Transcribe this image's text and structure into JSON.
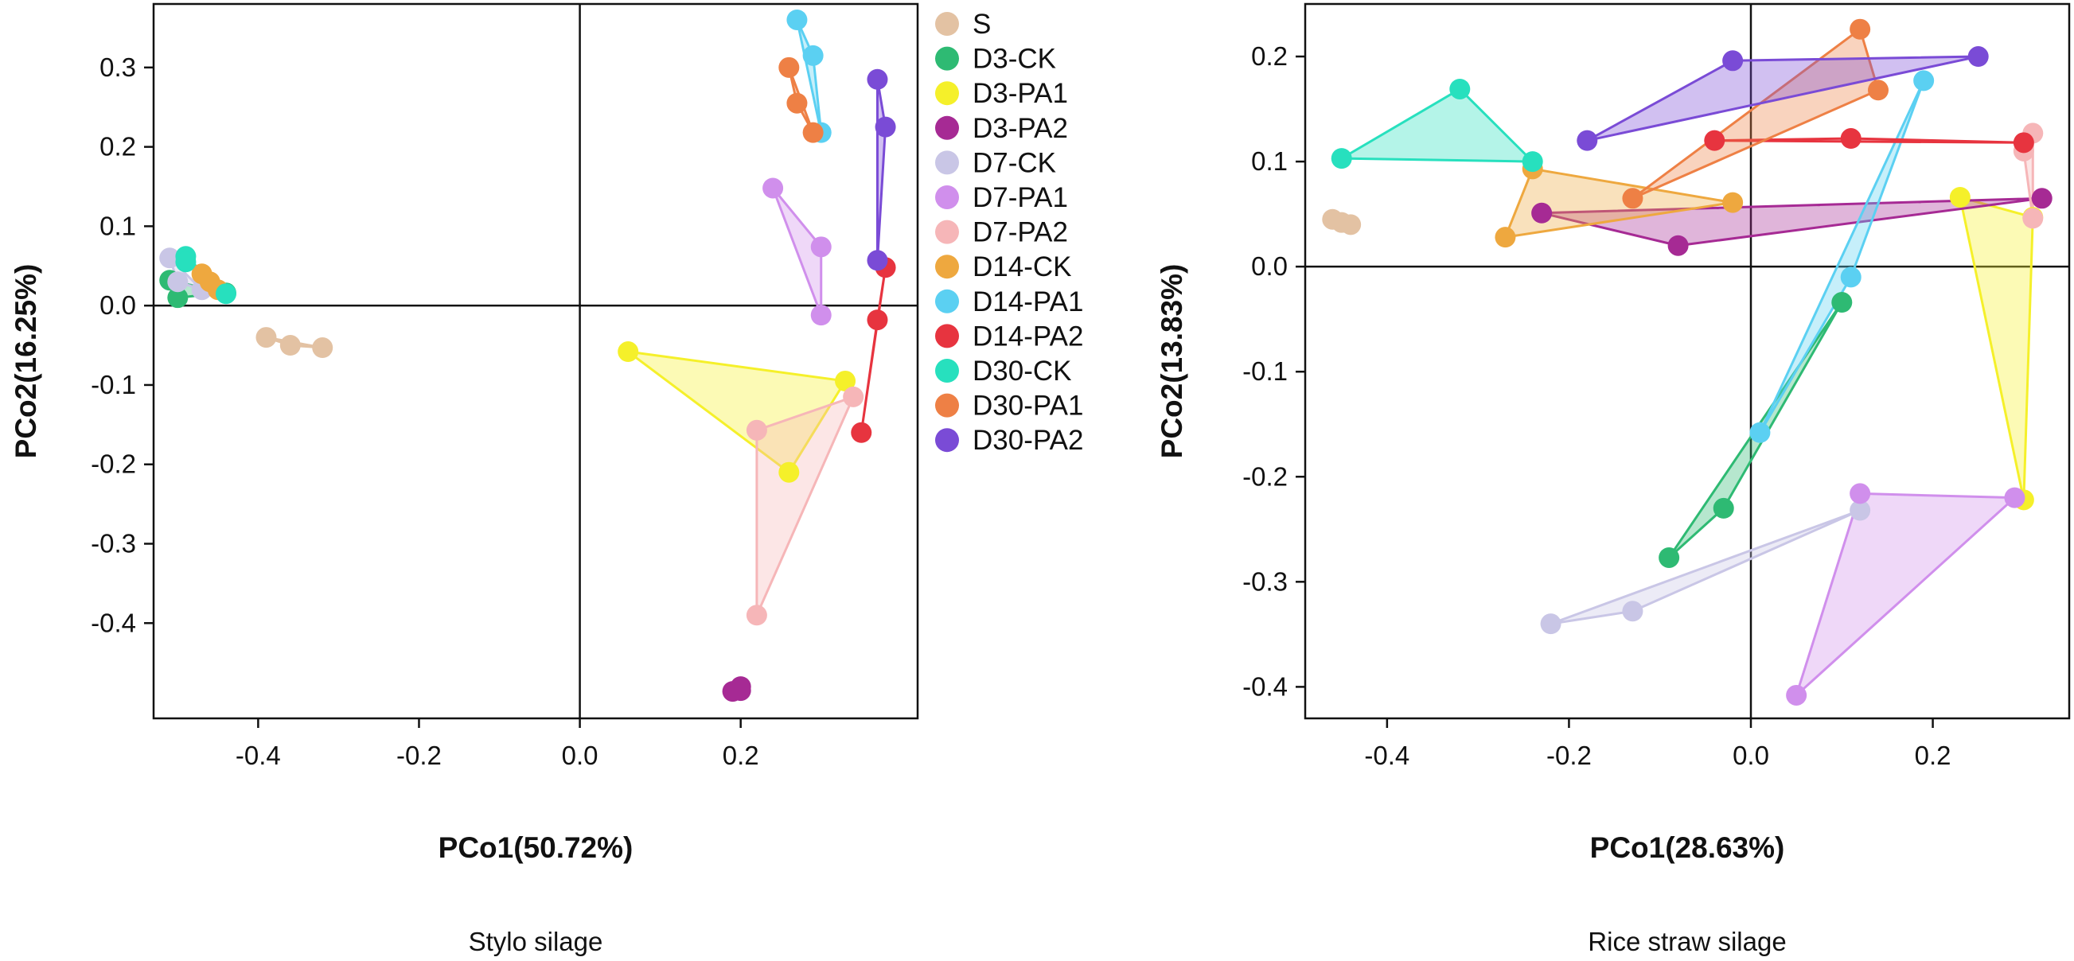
{
  "legend": [
    {
      "name": "S",
      "color": "#E3C2A3"
    },
    {
      "name": "D3-CK",
      "color": "#2EBA73"
    },
    {
      "name": "D3-PA1",
      "color": "#F5F02A"
    },
    {
      "name": "D3-PA2",
      "color": "#A62A94"
    },
    {
      "name": "D7-CK",
      "color": "#C9C6E6"
    },
    {
      "name": "D7-PA1",
      "color": "#D08FEC"
    },
    {
      "name": "D7-PA2",
      "color": "#F6B6B8"
    },
    {
      "name": "D14-CK",
      "color": "#EEA83F"
    },
    {
      "name": "D14-PA1",
      "color": "#5BD0F2"
    },
    {
      "name": "D14-PA2",
      "color": "#E7343F"
    },
    {
      "name": "D30-CK",
      "color": "#27E0BE"
    },
    {
      "name": "D30-PA1",
      "color": "#EE8045"
    },
    {
      "name": "D30-PA2",
      "color": "#7A4BD6"
    }
  ],
  "chart_data": [
    {
      "type": "scatter",
      "title": "Stylo silage",
      "xlabel": "PCo1(50.72%)",
      "ylabel": "PCo2(16.25%)",
      "xlim": [
        -0.53,
        0.42
      ],
      "ylim": [
        -0.52,
        0.38
      ],
      "xticks": [
        -0.4,
        -0.2,
        0.0,
        0.2
      ],
      "yticks": [
        0.3,
        0.2,
        0.1,
        0.0,
        -0.1,
        -0.2,
        -0.3,
        -0.4
      ],
      "xtick_labels": [
        "-0.4",
        "-0.2",
        "0.0",
        "0.2"
      ],
      "ytick_labels": [
        "0.3",
        "0.2",
        "0.1",
        "0.0",
        "-0.1",
        "-0.2",
        "-0.3",
        "-0.4"
      ],
      "series": [
        {
          "name": "S",
          "x": [
            -0.39,
            -0.36,
            -0.32
          ],
          "y": [
            -0.04,
            -0.05,
            -0.053
          ]
        },
        {
          "name": "D3-CK",
          "x": [
            -0.51,
            -0.5,
            -0.44
          ],
          "y": [
            0.032,
            0.01,
            0.016
          ]
        },
        {
          "name": "D3-PA1",
          "x": [
            0.06,
            0.33,
            0.26
          ],
          "y": [
            -0.058,
            -0.095,
            -0.21
          ]
        },
        {
          "name": "D3-PA2",
          "x": [
            0.19,
            0.2,
            0.2
          ],
          "y": [
            -0.486,
            -0.485,
            -0.48
          ]
        },
        {
          "name": "D7-CK",
          "x": [
            -0.51,
            -0.5,
            -0.47
          ],
          "y": [
            0.06,
            0.03,
            0.02
          ]
        },
        {
          "name": "D7-PA1",
          "x": [
            0.24,
            0.3,
            0.3
          ],
          "y": [
            0.148,
            0.074,
            -0.012
          ]
        },
        {
          "name": "D7-PA2",
          "x": [
            0.22,
            0.34,
            0.22
          ],
          "y": [
            -0.157,
            -0.115,
            -0.39
          ]
        },
        {
          "name": "D14-CK",
          "x": [
            -0.47,
            -0.46,
            -0.45
          ],
          "y": [
            0.04,
            0.03,
            0.02
          ]
        },
        {
          "name": "D14-PA1",
          "x": [
            0.27,
            0.29,
            0.3
          ],
          "y": [
            0.36,
            0.315,
            0.218
          ]
        },
        {
          "name": "D14-PA2",
          "x": [
            0.38,
            0.37,
            0.35
          ],
          "y": [
            0.048,
            -0.018,
            -0.16
          ]
        },
        {
          "name": "D30-CK",
          "x": [
            -0.49,
            -0.49,
            -0.44
          ],
          "y": [
            0.062,
            0.055,
            0.015
          ]
        },
        {
          "name": "D30-PA1",
          "x": [
            0.26,
            0.27,
            0.29
          ],
          "y": [
            0.3,
            0.255,
            0.218
          ]
        },
        {
          "name": "D30-PA2",
          "x": [
            0.37,
            0.38,
            0.37
          ],
          "y": [
            0.285,
            0.225,
            0.057
          ]
        }
      ]
    },
    {
      "type": "scatter",
      "title": "Rice straw silage",
      "xlabel": "PCo1(28.63%)",
      "ylabel": "PCo2(13.83%)",
      "xlim": [
        -0.49,
        0.35
      ],
      "ylim": [
        -0.43,
        0.25
      ],
      "xticks": [
        -0.4,
        -0.2,
        0.0,
        0.2
      ],
      "yticks": [
        0.2,
        0.1,
        0.0,
        -0.1,
        -0.2,
        -0.3,
        -0.4
      ],
      "xtick_labels": [
        "-0.4",
        "-0.2",
        "0.0",
        "0.2"
      ],
      "ytick_labels": [
        "0.2",
        "0.1",
        "0.0",
        "-0.1",
        "-0.2",
        "-0.3",
        "-0.4"
      ],
      "series": [
        {
          "name": "S",
          "x": [
            -0.46,
            -0.45,
            -0.44
          ],
          "y": [
            0.045,
            0.042,
            0.04
          ]
        },
        {
          "name": "D3-CK",
          "x": [
            0.1,
            -0.03,
            -0.09
          ],
          "y": [
            -0.034,
            -0.23,
            -0.277
          ]
        },
        {
          "name": "D3-PA1",
          "x": [
            0.23,
            0.31,
            0.3
          ],
          "y": [
            0.066,
            0.047,
            -0.222
          ]
        },
        {
          "name": "D3-PA2",
          "x": [
            -0.23,
            -0.08,
            0.32
          ],
          "y": [
            0.051,
            0.02,
            0.065
          ]
        },
        {
          "name": "D7-CK",
          "x": [
            -0.22,
            -0.13,
            0.12
          ],
          "y": [
            -0.34,
            -0.328,
            -0.232
          ]
        },
        {
          "name": "D7-PA1",
          "x": [
            0.12,
            0.29,
            0.05
          ],
          "y": [
            -0.216,
            -0.22,
            -0.408
          ]
        },
        {
          "name": "D7-PA2",
          "x": [
            0.3,
            0.31,
            0.31
          ],
          "y": [
            0.11,
            0.127,
            0.046
          ]
        },
        {
          "name": "D14-CK",
          "x": [
            -0.27,
            -0.24,
            -0.02
          ],
          "y": [
            0.028,
            0.093,
            0.061
          ]
        },
        {
          "name": "D14-PA1",
          "x": [
            0.19,
            0.11,
            0.01
          ],
          "y": [
            0.177,
            -0.01,
            -0.158
          ]
        },
        {
          "name": "D14-PA2",
          "x": [
            -0.04,
            0.11,
            0.3
          ],
          "y": [
            0.12,
            0.122,
            0.118
          ]
        },
        {
          "name": "D30-CK",
          "x": [
            -0.45,
            -0.32,
            -0.24
          ],
          "y": [
            0.103,
            0.169,
            0.1
          ]
        },
        {
          "name": "D30-PA1",
          "x": [
            -0.13,
            0.12,
            0.14
          ],
          "y": [
            0.065,
            0.226,
            0.168
          ]
        },
        {
          "name": "D30-PA2",
          "x": [
            -0.18,
            -0.02,
            0.25
          ],
          "y": [
            0.12,
            0.196,
            0.2
          ]
        }
      ]
    }
  ]
}
